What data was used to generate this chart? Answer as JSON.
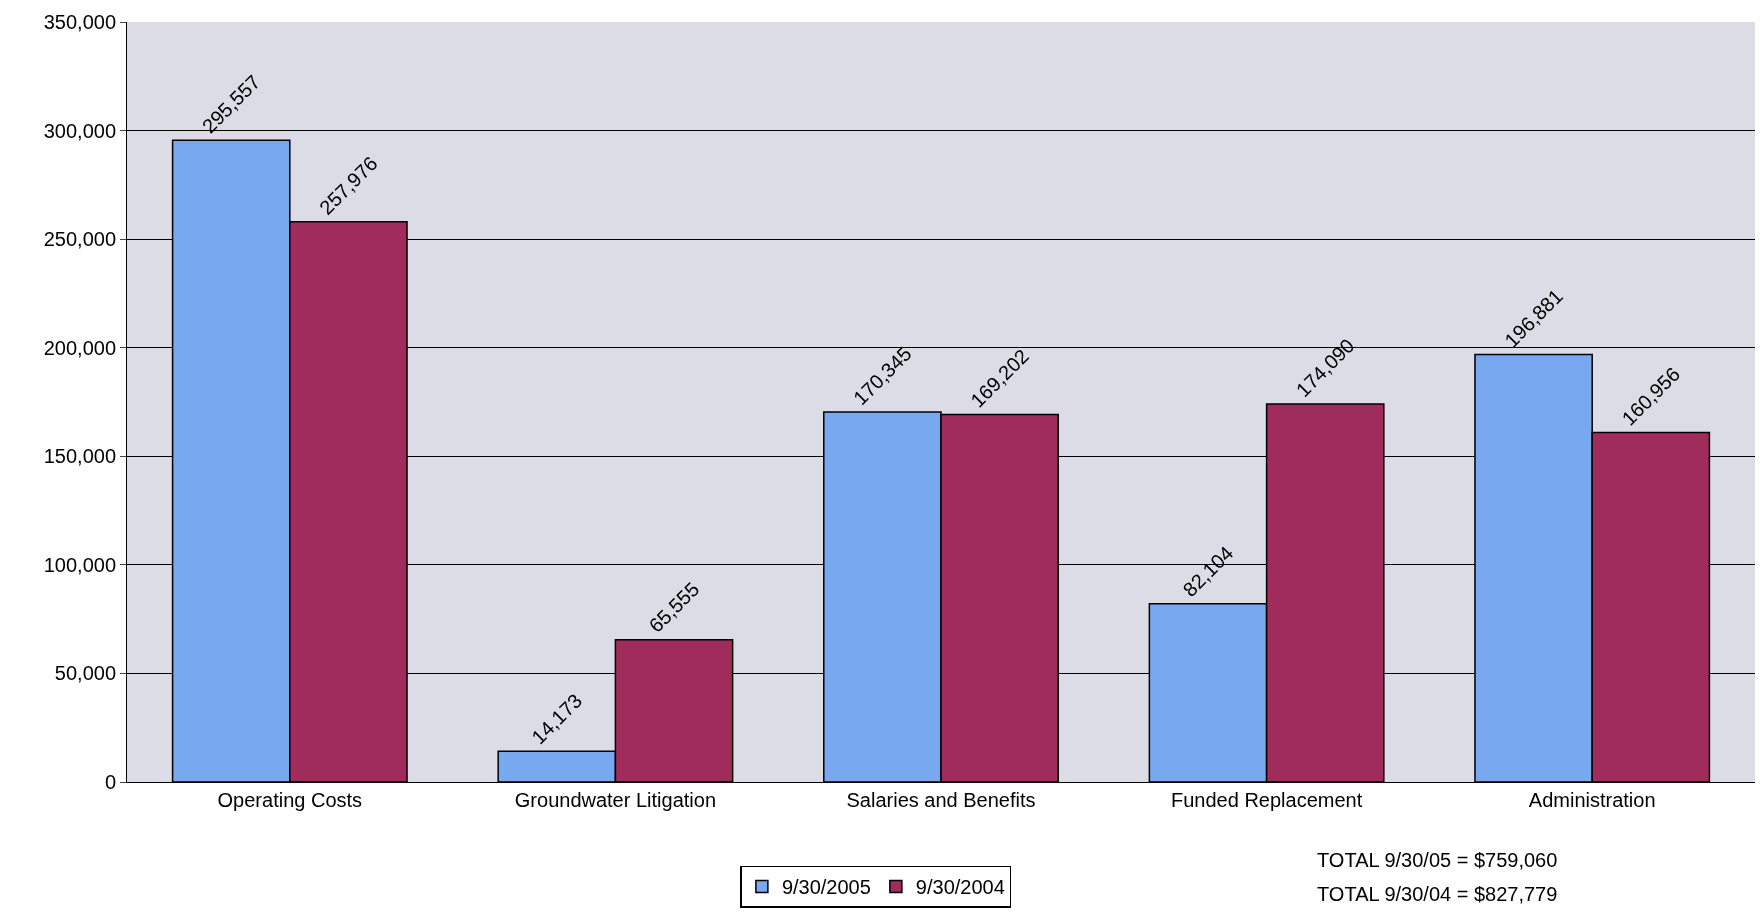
{
  "chart_data": {
    "type": "bar",
    "categories": [
      "Operating Costs",
      "Groundwater Litigation",
      "Salaries and Benefits",
      "Funded Replacement",
      "Administration"
    ],
    "series": [
      {
        "name": "9/30/2005",
        "color": "#78a8f0",
        "values": [
          295557,
          14173,
          170345,
          82104,
          196881
        ],
        "value_labels": [
          "295,557",
          "14,173",
          "170,345",
          "82,104",
          "196,881"
        ]
      },
      {
        "name": "9/30/2004",
        "color": "#a02c5c",
        "values": [
          257976,
          65555,
          169202,
          174090,
          160956
        ],
        "value_labels": [
          "257,976",
          "65,555",
          "169,202",
          "174,090",
          "160,956"
        ]
      }
    ],
    "ylim": [
      0,
      350000
    ],
    "yticks": [
      {
        "value": 0,
        "label": "0"
      },
      {
        "value": 50000,
        "label": "50,000"
      },
      {
        "value": 100000,
        "label": "100,000"
      },
      {
        "value": 150000,
        "label": "150,000"
      },
      {
        "value": 200000,
        "label": "200,000"
      },
      {
        "value": 250000,
        "label": "250,000"
      },
      {
        "value": 300000,
        "label": "300,000"
      },
      {
        "value": 350000,
        "label": "350,000"
      }
    ],
    "grid": "y",
    "legend": "bottom",
    "annotations": [
      "TOTAL 9/30/05 = $759,060",
      "TOTAL 9/30/04 = $827,779"
    ]
  }
}
